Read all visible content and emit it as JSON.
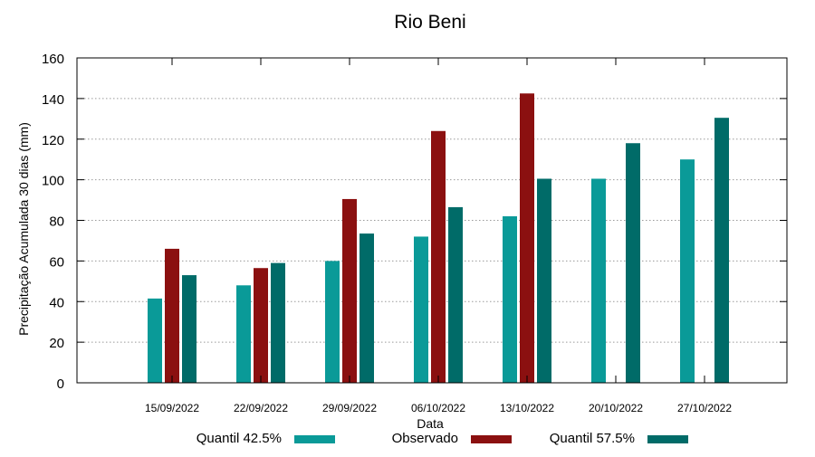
{
  "chart_data": {
    "type": "bar",
    "title": "Rio Beni",
    "xlabel": "Data",
    "ylabel": "Precipitação Acumulada 30 dias (mm)",
    "ylim": [
      0,
      160
    ],
    "yticks": [
      0,
      20,
      40,
      60,
      80,
      100,
      120,
      140,
      160
    ],
    "grid": true,
    "legend_position": "bottom",
    "categories": [
      "15/09/2022",
      "22/09/2022",
      "29/09/2022",
      "06/10/2022",
      "13/10/2022",
      "20/10/2022",
      "27/10/2022"
    ],
    "series": [
      {
        "name": "Quantil 42.5%",
        "color": "#0a9a98",
        "values": [
          41.5,
          48,
          60,
          72,
          82,
          100.5,
          110
        ]
      },
      {
        "name": "Observado",
        "color": "#8b1010",
        "values": [
          66,
          56.5,
          90.5,
          124,
          142.5,
          null,
          null
        ]
      },
      {
        "name": "Quantil 57.5%",
        "color": "#006b68",
        "values": [
          53,
          59,
          73.5,
          86.5,
          100.5,
          118,
          130.5
        ]
      }
    ]
  }
}
